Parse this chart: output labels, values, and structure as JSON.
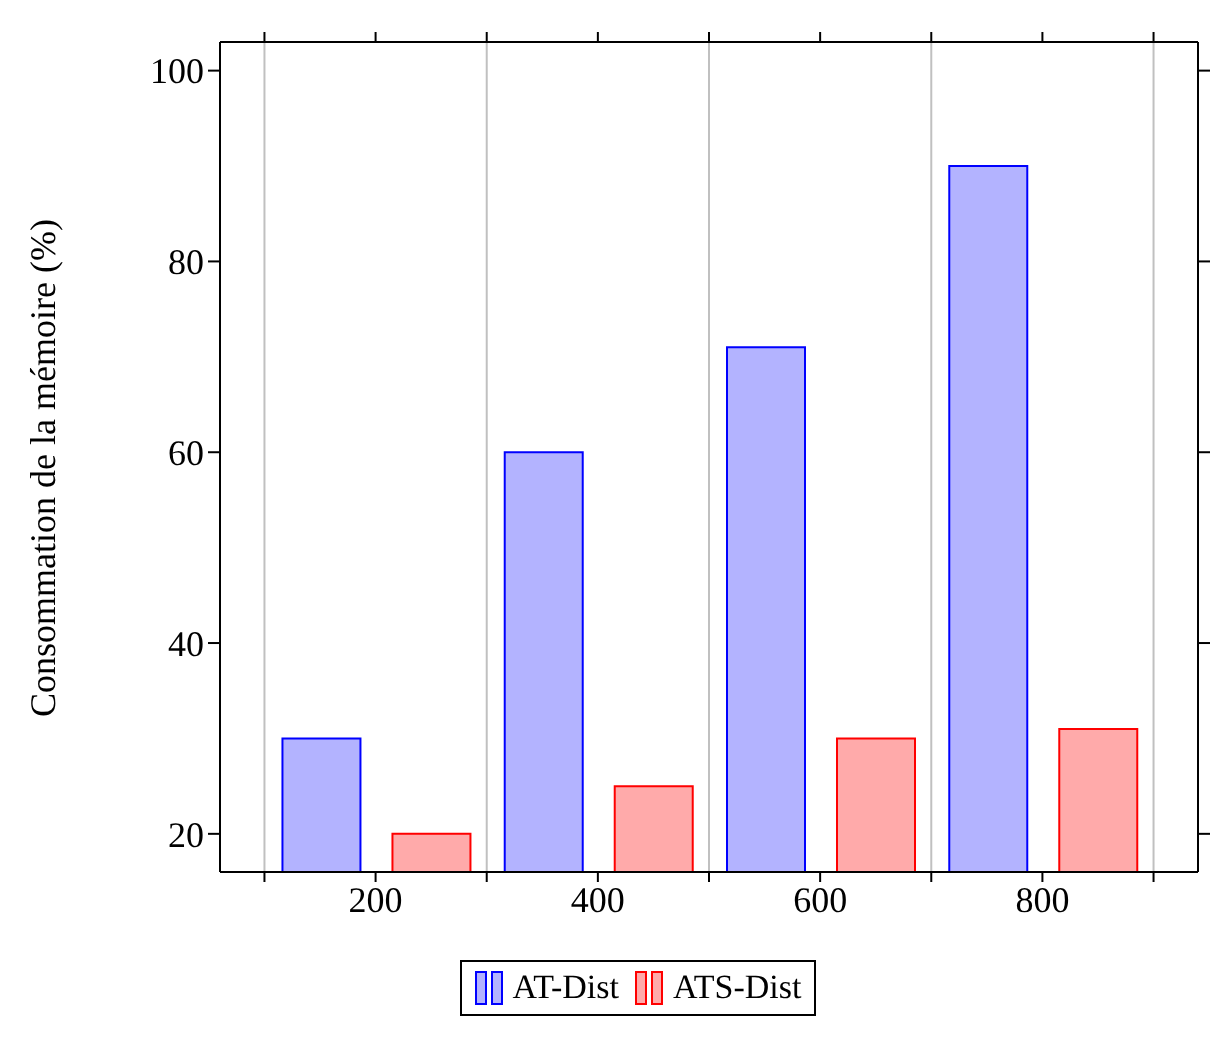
{
  "chart_data": {
    "type": "bar",
    "ylabel": "Consommation de la mémoire (%)",
    "x": [
      200,
      400,
      600,
      800
    ],
    "series": [
      {
        "name": "AT-Dist",
        "color": "#b3b3ff",
        "values": [
          30,
          60,
          71,
          90
        ]
      },
      {
        "name": "ATS-Dist",
        "color": "#ffaaaa",
        "values": [
          20,
          25,
          30,
          31
        ]
      }
    ],
    "xlim": [
      60,
      940
    ],
    "xticks": [
      {
        "value": 100,
        "label": null
      },
      200,
      {
        "value": 300,
        "label": null
      },
      400,
      {
        "value": 500,
        "label": null
      },
      600,
      {
        "value": 700,
        "label": null
      },
      800,
      {
        "value": 900,
        "label": null
      }
    ],
    "ylim": [
      16,
      103
    ],
    "yticks": [
      20,
      40,
      60,
      80,
      100
    ],
    "grid": "x",
    "legend": "bottom"
  }
}
